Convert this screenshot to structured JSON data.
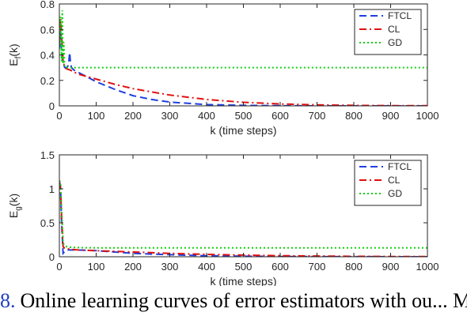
{
  "caption": {
    "number": "8.",
    "text": "Online learning curves of error estimators with ou... M..."
  },
  "chart_data": [
    {
      "type": "line",
      "title": "",
      "xlabel": "k (time steps)",
      "ylabel": "E_f(k)",
      "ylabel_main": "E",
      "ylabel_sub": "f",
      "ylabel_tail": "(k)",
      "xlim": [
        0,
        1000
      ],
      "ylim": [
        0,
        0.8
      ],
      "xticks": [
        0,
        100,
        200,
        300,
        400,
        500,
        600,
        700,
        800,
        900,
        1000
      ],
      "xtick_labels": [
        "0",
        "100",
        "200",
        "300",
        "400",
        "500",
        "600",
        "700",
        "800",
        "900",
        "1000"
      ],
      "yticks": [
        0,
        0.2,
        0.4,
        0.6,
        0.8
      ],
      "ytick_labels": [
        "0",
        "0.2",
        "0.4",
        "0.6",
        "0.8"
      ],
      "grid": false,
      "legend_position": "top-right",
      "series": [
        {
          "name": "FTCL",
          "color": "#1f3fe0",
          "dash": "dashed",
          "x": [
            0,
            3,
            6,
            10,
            15,
            20,
            25,
            28,
            30,
            33,
            40,
            60,
            80,
            100,
            150,
            200,
            250,
            300,
            400,
            500,
            600,
            700,
            800,
            1000
          ],
          "y": [
            0.45,
            0.6,
            0.42,
            0.33,
            0.3,
            0.3,
            0.32,
            0.42,
            0.34,
            0.3,
            0.28,
            0.25,
            0.22,
            0.19,
            0.13,
            0.08,
            0.05,
            0.03,
            0.01,
            0.004,
            0.001,
            0.0,
            0.0,
            0.0
          ]
        },
        {
          "name": "CL",
          "color": "#e01010",
          "dash": "dashdot",
          "x": [
            0,
            3,
            6,
            10,
            15,
            20,
            30,
            50,
            100,
            150,
            200,
            250,
            300,
            400,
            500,
            600,
            700,
            800,
            900,
            1000
          ],
          "y": [
            0.5,
            0.69,
            0.55,
            0.35,
            0.3,
            0.29,
            0.28,
            0.25,
            0.21,
            0.17,
            0.135,
            0.11,
            0.085,
            0.05,
            0.028,
            0.015,
            0.008,
            0.004,
            0.002,
            0.001
          ]
        },
        {
          "name": "GD",
          "color": "#10d010",
          "dash": "dotted",
          "x": [
            0,
            3,
            6,
            8,
            10,
            12,
            14,
            18,
            25,
            40,
            60,
            100,
            300,
            600,
            1000
          ],
          "y": [
            0.45,
            0.7,
            0.35,
            0.75,
            0.33,
            0.5,
            0.31,
            0.3,
            0.3,
            0.3,
            0.3,
            0.3,
            0.3,
            0.3,
            0.3
          ]
        }
      ]
    },
    {
      "type": "line",
      "title": "",
      "xlabel": "k (time steps)",
      "ylabel": "E_g(k)",
      "ylabel_main": "E",
      "ylabel_sub": "g",
      "ylabel_tail": "(k)",
      "xlim": [
        0,
        1000
      ],
      "ylim": [
        0,
        1.5
      ],
      "xticks": [
        0,
        100,
        200,
        300,
        400,
        500,
        600,
        700,
        800,
        900,
        1000
      ],
      "xtick_labels": [
        "0",
        "100",
        "200",
        "300",
        "400",
        "500",
        "600",
        "700",
        "800",
        "900",
        "1000"
      ],
      "yticks": [
        0,
        0.5,
        1,
        1.5
      ],
      "ytick_labels": [
        "0",
        "0.5",
        "1",
        "1.5"
      ],
      "grid": false,
      "legend_position": "top-right",
      "series": [
        {
          "name": "FTCL",
          "color": "#1f3fe0",
          "dash": "dashed",
          "x": [
            0,
            3,
            6,
            10,
            15,
            20,
            30,
            50,
            100,
            150,
            200,
            250,
            300,
            400,
            500,
            600,
            700,
            800,
            1000
          ],
          "y": [
            1.1,
            1.05,
            0.5,
            0.05,
            0.08,
            0.1,
            0.1,
            0.1,
            0.09,
            0.07,
            0.05,
            0.04,
            0.03,
            0.015,
            0.008,
            0.004,
            0.002,
            0.001,
            0.0
          ]
        },
        {
          "name": "CL",
          "color": "#e01010",
          "dash": "dashdot",
          "x": [
            0,
            3,
            6,
            10,
            15,
            20,
            30,
            50,
            100,
            150,
            200,
            250,
            300,
            400,
            500,
            600,
            700,
            800,
            900,
            1000
          ],
          "y": [
            1.1,
            1.0,
            0.6,
            0.15,
            0.12,
            0.12,
            0.11,
            0.1,
            0.09,
            0.08,
            0.07,
            0.06,
            0.05,
            0.035,
            0.025,
            0.015,
            0.01,
            0.006,
            0.003,
            0.002
          ]
        },
        {
          "name": "GD",
          "color": "#10d010",
          "dash": "dotted",
          "x": [
            0,
            3,
            6,
            10,
            15,
            20,
            30,
            50,
            100,
            300,
            600,
            1000
          ],
          "y": [
            1.12,
            1.1,
            0.7,
            0.2,
            0.16,
            0.15,
            0.14,
            0.135,
            0.13,
            0.13,
            0.13,
            0.13
          ]
        }
      ]
    }
  ]
}
